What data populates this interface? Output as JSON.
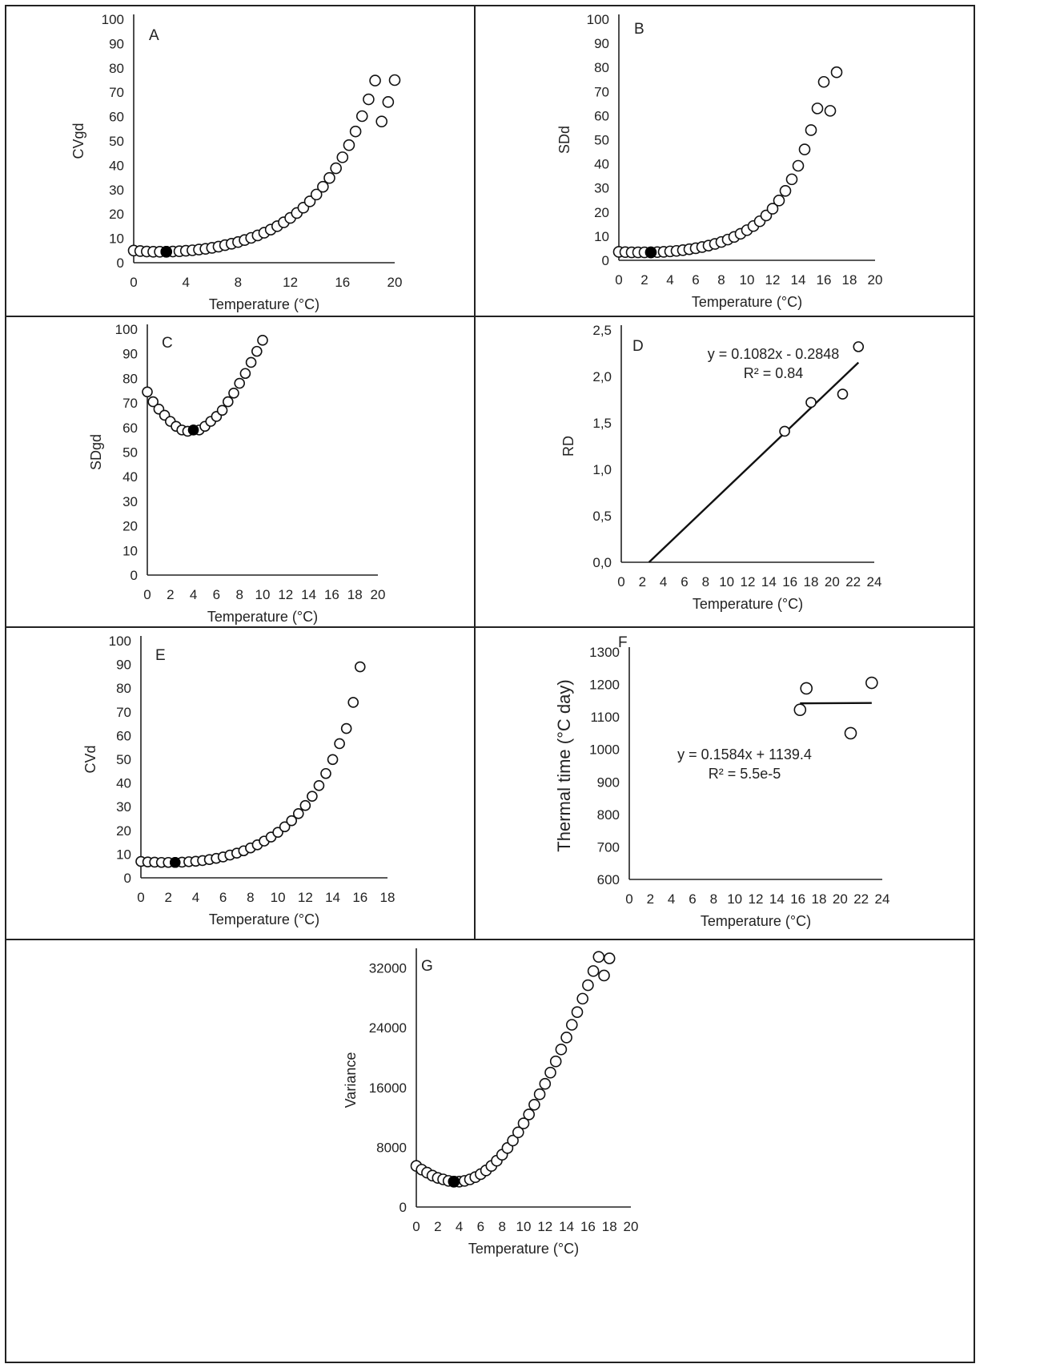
{
  "chart_data": [
    {
      "panel": "A",
      "type": "scatter",
      "xlabel": "Temperature (°C)",
      "ylabel": "CVgd",
      "xlim": [
        0,
        20
      ],
      "ylim": [
        0,
        100
      ],
      "xticks": [
        0,
        4,
        8,
        12,
        16,
        20
      ],
      "yticks": [
        0,
        10,
        20,
        30,
        40,
        50,
        60,
        70,
        80,
        90,
        100
      ],
      "x": [
        0,
        0.5,
        1,
        1.5,
        2,
        2.5,
        3,
        3.5,
        4,
        4.5,
        5,
        5.5,
        6,
        6.5,
        7,
        7.5,
        8,
        8.5,
        9,
        9.5,
        10,
        10.5,
        11,
        11.5,
        12,
        12.5,
        13,
        13.5,
        14,
        14.5,
        15,
        15.5,
        16,
        16.5,
        17,
        17.5,
        18,
        18.5,
        19,
        19.5,
        20
      ],
      "y": [
        5,
        4.8,
        4.6,
        4.5,
        4.5,
        4.5,
        4.6,
        4.7,
        4.9,
        5.1,
        5.4,
        5.7,
        6.1,
        6.6,
        7.2,
        7.8,
        8.5,
        9.3,
        10.2,
        11.2,
        12.3,
        13.6,
        15,
        16.6,
        18.4,
        20.4,
        22.6,
        25.2,
        28,
        31.2,
        34.8,
        38.8,
        43.3,
        48.3,
        53.9,
        60.2,
        67.1,
        74.8,
        58,
        66,
        75
      ],
      "highlight": {
        "x": 2.5,
        "y": 4.5
      }
    },
    {
      "panel": "B",
      "type": "scatter",
      "xlabel": "Temperature (°C)",
      "ylabel": "SDd",
      "xlim": [
        0,
        20
      ],
      "ylim": [
        0,
        100
      ],
      "xticks": [
        0,
        2,
        4,
        6,
        8,
        10,
        12,
        14,
        16,
        18,
        20
      ],
      "yticks": [
        0,
        10,
        20,
        30,
        40,
        50,
        60,
        70,
        80,
        90,
        100
      ],
      "x": [
        0,
        0.5,
        1,
        1.5,
        2,
        2.5,
        3,
        3.5,
        4,
        4.5,
        5,
        5.5,
        6,
        6.5,
        7,
        7.5,
        8,
        8.5,
        9,
        9.5,
        10,
        10.5,
        11,
        11.5,
        12,
        12.5,
        13,
        13.5,
        14,
        14.5,
        15,
        15.5,
        16,
        16.5,
        17
      ],
      "y": [
        3.5,
        3.4,
        3.3,
        3.3,
        3.3,
        3.3,
        3.4,
        3.5,
        3.7,
        3.9,
        4.2,
        4.6,
        5,
        5.5,
        6.1,
        6.8,
        7.6,
        8.6,
        9.7,
        11,
        12.5,
        14.2,
        16.2,
        18.6,
        21.4,
        24.8,
        28.8,
        33.6,
        39.2,
        46,
        54,
        63,
        74,
        62,
        78
      ],
      "highlight": {
        "x": 2.5,
        "y": 3.3
      }
    },
    {
      "panel": "C",
      "type": "scatter",
      "xlabel": "Temperature (°C)",
      "ylabel": "SDgd",
      "xlim": [
        0,
        20
      ],
      "ylim": [
        0,
        100
      ],
      "xticks": [
        0,
        2,
        4,
        6,
        8,
        10,
        12,
        14,
        16,
        18,
        20
      ],
      "yticks": [
        0,
        10,
        20,
        30,
        40,
        50,
        60,
        70,
        80,
        90,
        100
      ],
      "x": [
        0,
        0.5,
        1,
        1.5,
        2,
        2.5,
        3,
        3.5,
        4,
        4.5,
        5,
        5.5,
        6,
        6.5,
        7,
        7.5,
        8,
        8.5,
        9,
        9.5,
        10
      ],
      "y": [
        74.5,
        70.5,
        67.5,
        65,
        62.5,
        60.5,
        59,
        58.5,
        59,
        59,
        60.5,
        62.5,
        64.5,
        67,
        70.5,
        74,
        78,
        82,
        86.5,
        91,
        95.5
      ],
      "highlight": {
        "x": 4,
        "y": 59
      }
    },
    {
      "panel": "D",
      "type": "scatter",
      "xlabel": "Temperature (°C)",
      "ylabel": "RD",
      "xlim": [
        0,
        24
      ],
      "ylim": [
        0,
        2.5
      ],
      "xticks": [
        0,
        2,
        4,
        6,
        8,
        10,
        12,
        14,
        16,
        18,
        20,
        22,
        24
      ],
      "yticks": [
        "0,0",
        "0,5",
        "1,0",
        "1,5",
        "2,0",
        "2,5"
      ],
      "x": [
        15.5,
        18,
        21,
        22.5
      ],
      "y": [
        1.41,
        1.72,
        1.81,
        2.32
      ],
      "trendline": {
        "slope": 0.1082,
        "intercept": -0.2848,
        "x": [
          2.63,
          22.5
        ]
      },
      "equation": "y = 0.1082x - 0.2848",
      "r2": "R² = 0.84"
    },
    {
      "panel": "E",
      "type": "scatter",
      "xlabel": "Temperature (°C)",
      "ylabel": "CVd",
      "xlim": [
        0,
        18
      ],
      "ylim": [
        0,
        100
      ],
      "xticks": [
        0,
        2,
        4,
        6,
        8,
        10,
        12,
        14,
        16,
        18
      ],
      "yticks": [
        0,
        10,
        20,
        30,
        40,
        50,
        60,
        70,
        80,
        90,
        100
      ],
      "x": [
        0,
        0.5,
        1,
        1.5,
        2,
        2.5,
        3,
        3.5,
        4,
        4.5,
        5,
        5.5,
        6,
        6.5,
        7,
        7.5,
        8,
        8.5,
        9,
        9.5,
        10,
        10.5,
        11,
        11.5,
        12,
        12.5,
        13,
        13.5,
        14,
        14.5,
        15,
        15.5,
        16
      ],
      "y": [
        6.9,
        6.7,
        6.6,
        6.5,
        6.5,
        6.5,
        6.6,
        6.8,
        7,
        7.3,
        7.7,
        8.2,
        8.8,
        9.6,
        10.4,
        11.4,
        12.6,
        13.9,
        15.5,
        17.2,
        19.2,
        21.5,
        24.1,
        27.1,
        30.5,
        34.4,
        38.9,
        44,
        49.9,
        56.6,
        63,
        74,
        89
      ],
      "highlight": {
        "x": 2.5,
        "y": 6.5
      }
    },
    {
      "panel": "F",
      "type": "scatter",
      "xlabel": "Temperature (°C)",
      "ylabel": "Thermal time (°C day)",
      "xlim": [
        0,
        24
      ],
      "ylim": [
        600,
        1300
      ],
      "xticks": [
        0,
        2,
        4,
        6,
        8,
        10,
        12,
        14,
        16,
        18,
        20,
        22,
        24
      ],
      "yticks": [
        600,
        700,
        800,
        900,
        1000,
        1100,
        1200,
        1300
      ],
      "x": [
        16.2,
        16.8,
        21,
        23
      ],
      "y": [
        1122,
        1188,
        1050,
        1205
      ],
      "trendline": {
        "slope": 0.1584,
        "intercept": 1139.4,
        "x": [
          16.2,
          23
        ]
      },
      "equation": "y = 0.1584x + 1139.4",
      "r2": "R² = 5.5e-5"
    },
    {
      "panel": "G",
      "type": "scatter",
      "xlabel": "Temperature (°C)",
      "ylabel": "Variance",
      "xlim": [
        0,
        20
      ],
      "ylim": [
        0,
        34000
      ],
      "xticks": [
        0,
        2,
        4,
        6,
        8,
        10,
        12,
        14,
        16,
        18,
        20
      ],
      "yticks": [
        0,
        8000,
        16000,
        24000,
        32000
      ],
      "x": [
        0,
        0.5,
        1,
        1.5,
        2,
        2.5,
        3,
        3.5,
        4,
        4.5,
        5,
        5.5,
        6,
        6.5,
        7,
        7.5,
        8,
        8.5,
        9,
        9.5,
        10,
        10.5,
        11,
        11.5,
        12,
        12.5,
        13,
        13.5,
        14,
        14.5,
        15,
        15.5,
        16,
        16.5,
        17,
        17.5,
        18
      ],
      "y": [
        5500,
        5000,
        4600,
        4200,
        3900,
        3700,
        3500,
        3400,
        3400,
        3500,
        3700,
        4000,
        4400,
        4900,
        5500,
        6200,
        7000,
        7900,
        8900,
        10000,
        11200,
        12400,
        13700,
        15100,
        16500,
        18000,
        19500,
        21100,
        22700,
        24400,
        26100,
        27900,
        29700,
        31600,
        33500,
        31000,
        33300
      ],
      "highlight": {
        "x": 3.5,
        "y": 3400
      }
    }
  ]
}
